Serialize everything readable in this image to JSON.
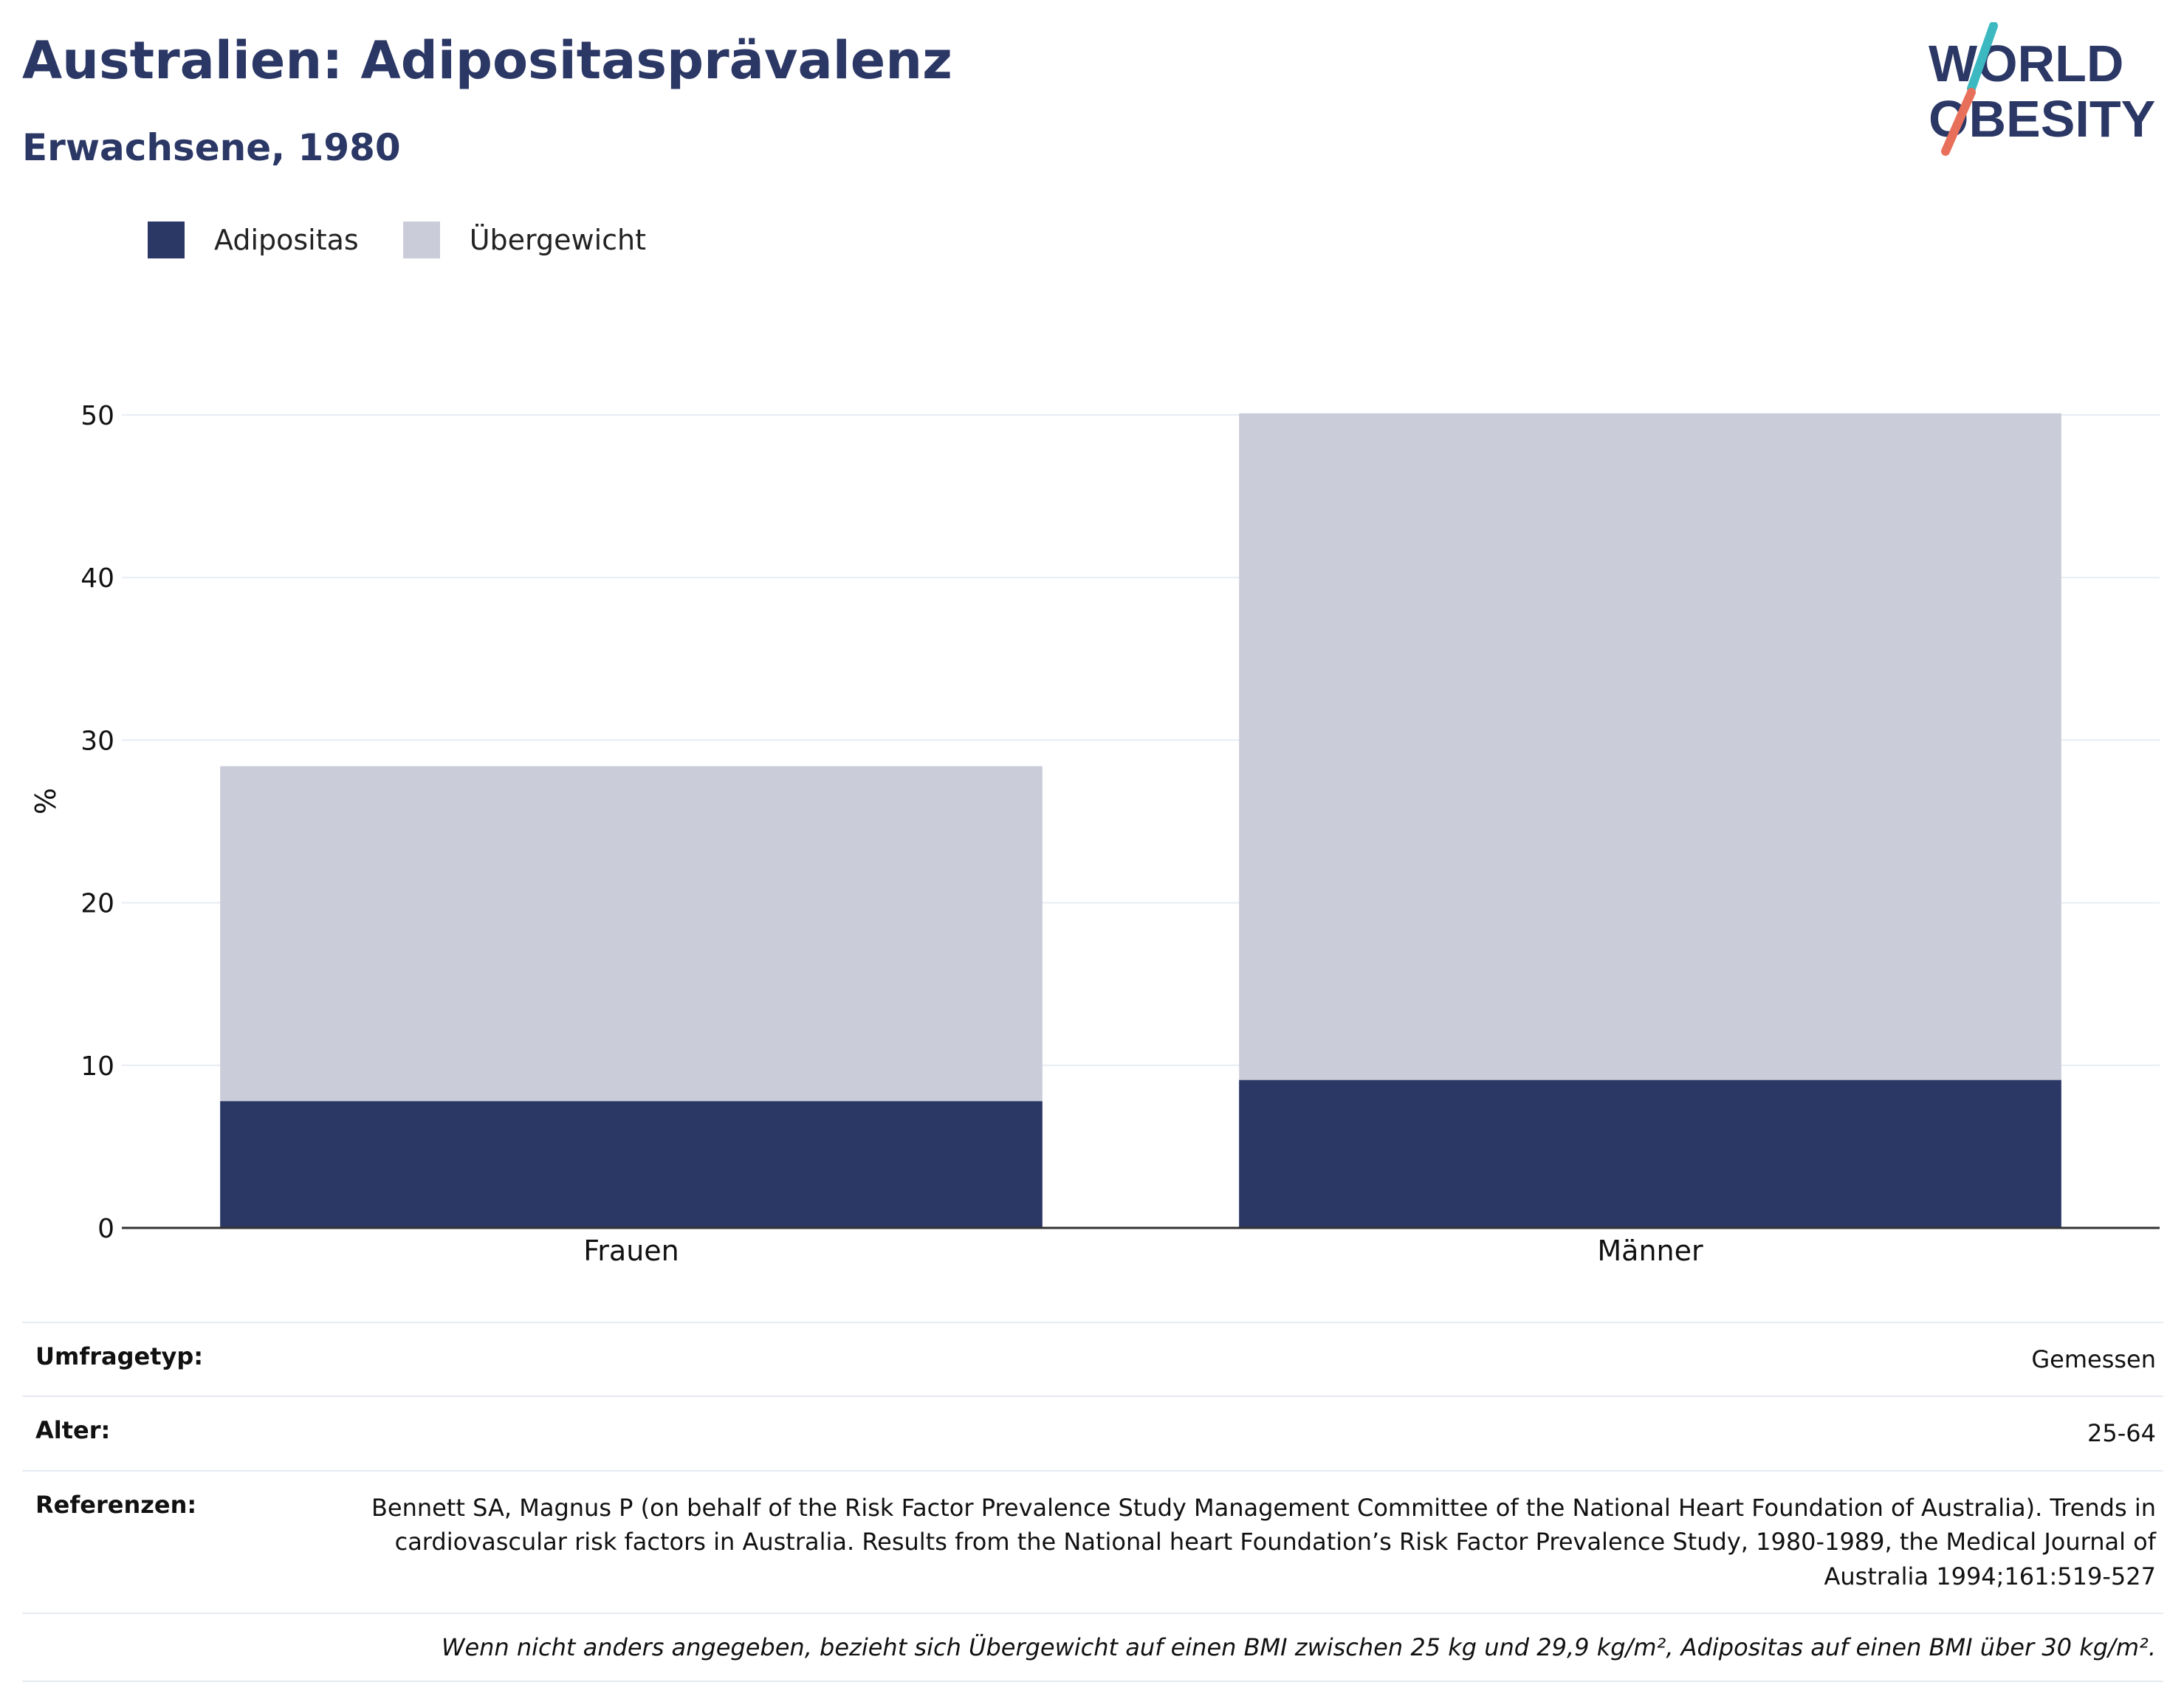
{
  "header": {
    "title": "Australien: Adipositasprävalenz",
    "subtitle": "Erwachsene, 1980"
  },
  "logo": {
    "line1": "WORLD",
    "line2": "OBESITY"
  },
  "colors": {
    "obesity": "#2b3765",
    "overweight": "#cacdd9",
    "title": "#2b3765",
    "logo_teal": "#3cb8c0",
    "logo_coral": "#e8705a"
  },
  "chart_data": {
    "type": "bar",
    "stacked": true,
    "categories": [
      "Frauen",
      "Männer"
    ],
    "series": [
      {
        "name": "Adipositas",
        "values": [
          7.8,
          9.1
        ]
      },
      {
        "name": "Übergewicht",
        "values": [
          20.6,
          41.0
        ]
      }
    ],
    "ylabel": "%",
    "ylim": [
      0,
      50
    ],
    "yticks": [
      0,
      10,
      20,
      30,
      40,
      50
    ],
    "grid": true,
    "legend": "top-left"
  },
  "meta": {
    "survey_label": "Umfragetyp:",
    "survey_value": "Gemessen",
    "age_label": "Alter:",
    "age_value": "25-64",
    "ref_label": "Referenzen:",
    "ref_value": "Bennett SA, Magnus P (on behalf of the Risk Factor Prevalence Study Management Committee of the National Heart Foundation of Australia). Trends in cardiovascular risk factors in Australia. Results from the National heart Foundation’s Risk Factor Prevalence Study, 1980-1989, the Medical Journal of Australia 1994;161:519-527",
    "note": "Wenn nicht anders angegeben, bezieht sich Übergewicht auf einen BMI zwischen 25 kg und 29,9 kg/m², Adipositas auf einen BMI über 30 kg/m²."
  }
}
